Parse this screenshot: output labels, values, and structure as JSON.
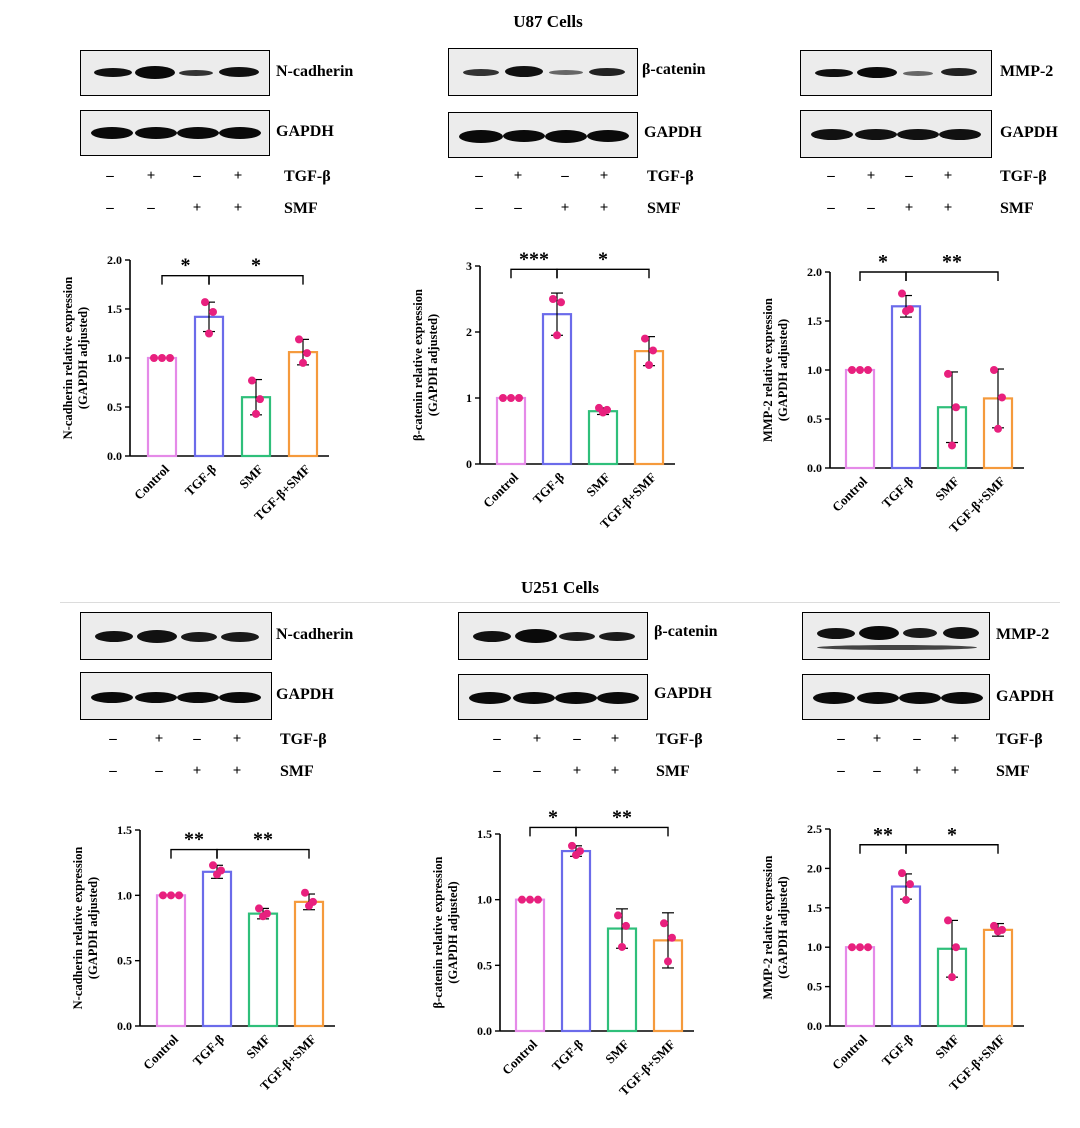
{
  "sections": [
    {
      "title": "U87 Cells"
    },
    {
      "title": "U251 Cells"
    }
  ],
  "treatment_rows": {
    "tgf_label": "TGF-β",
    "smf_label": "SMF",
    "tgf_signs": [
      "–",
      "+",
      "–",
      "+"
    ],
    "smf_signs": [
      "–",
      "–",
      "+",
      "+"
    ]
  },
  "blots": [
    {
      "protein": "N-cadherin",
      "loading": "GAPDH"
    },
    {
      "protein": "β-catenin",
      "loading": "GAPDH"
    },
    {
      "protein": "MMP-2",
      "loading": "GAPDH"
    },
    {
      "protein": "N-cadherin",
      "loading": "GAPDH"
    },
    {
      "protein": "β-catenin",
      "loading": "GAPDH"
    },
    {
      "protein": "MMP-2",
      "loading": "GAPDH"
    }
  ],
  "chart_data": [
    {
      "type": "bar",
      "ylabel": "N-cadherin relative expression (GAPDH adjusted)",
      "categories": [
        "Control",
        "TGF-β",
        "SMF",
        "TGF-β+SMF"
      ],
      "colors": [
        "#e58ae8",
        "#6b6bea",
        "#2fbf7a",
        "#f59a3c"
      ],
      "values": [
        1.0,
        1.42,
        0.6,
        1.06
      ],
      "errors": [
        0,
        0.15,
        0.18,
        0.13
      ],
      "points": [
        [
          1.0,
          1.0,
          1.0
        ],
        [
          1.57,
          1.47,
          1.25
        ],
        [
          0.77,
          0.58,
          0.43
        ],
        [
          1.19,
          1.05,
          0.95
        ]
      ],
      "ylim": [
        0,
        2.0
      ],
      "ticks": [
        0.0,
        0.5,
        1.0,
        1.5,
        2.0
      ],
      "tick_labels": [
        "0.0",
        "0.5",
        "1.0",
        "1.5",
        "2.0"
      ],
      "sig": [
        {
          "from": 0,
          "to": 1,
          "label": "*",
          "level": 1.84
        },
        {
          "from": 1,
          "to": 3,
          "label": "*",
          "level": 1.84
        }
      ]
    },
    {
      "type": "bar",
      "ylabel": "β-catenin relative expression (GAPDH adjusted)",
      "categories": [
        "Control",
        "TGF-β",
        "SMF",
        "TGF-β+SMF"
      ],
      "colors": [
        "#e58ae8",
        "#6b6bea",
        "#2fbf7a",
        "#f59a3c"
      ],
      "values": [
        1.0,
        2.27,
        0.8,
        1.71
      ],
      "errors": [
        0,
        0.32,
        0.05,
        0.22
      ],
      "points": [
        [
          1.0,
          1.0,
          1.0
        ],
        [
          2.5,
          2.45,
          1.95
        ],
        [
          0.85,
          0.82,
          0.78
        ],
        [
          1.9,
          1.72,
          1.5
        ]
      ],
      "ylim": [
        0,
        3
      ],
      "ticks": [
        0,
        1,
        2,
        3
      ],
      "tick_labels": [
        "0",
        "1",
        "2",
        "3"
      ],
      "sig": [
        {
          "from": 0,
          "to": 1,
          "label": "***",
          "level": 2.95
        },
        {
          "from": 1,
          "to": 3,
          "label": "*",
          "level": 2.95
        }
      ]
    },
    {
      "type": "bar",
      "ylabel": "MMP-2  relative expression (GAPDH adjusted)",
      "categories": [
        "Control",
        "TGF-β",
        "SMF",
        "TGF-β+SMF"
      ],
      "colors": [
        "#e58ae8",
        "#6b6bea",
        "#2fbf7a",
        "#f59a3c"
      ],
      "values": [
        1.0,
        1.65,
        0.62,
        0.71
      ],
      "errors": [
        0,
        0.11,
        0.36,
        0.3
      ],
      "points": [
        [
          1.0,
          1.0,
          1.0
        ],
        [
          1.78,
          1.62,
          1.6
        ],
        [
          0.96,
          0.62,
          0.23
        ],
        [
          1.0,
          0.72,
          0.4
        ]
      ],
      "ylim": [
        0,
        2.0
      ],
      "ticks": [
        0.0,
        0.5,
        1.0,
        1.5,
        2.0
      ],
      "tick_labels": [
        "0.0",
        "0.5",
        "1.0",
        "1.5",
        "2.0"
      ],
      "sig": [
        {
          "from": 0,
          "to": 1,
          "label": "*",
          "level": 2.0
        },
        {
          "from": 1,
          "to": 3,
          "label": "**",
          "level": 2.0
        }
      ]
    },
    {
      "type": "bar",
      "ylabel": "N-cadherin relative expression (GAPDH adjusted)",
      "categories": [
        "Control",
        "TGF-β",
        "SMF",
        "TGF-β+SMF"
      ],
      "colors": [
        "#e58ae8",
        "#6b6bea",
        "#2fbf7a",
        "#f59a3c"
      ],
      "values": [
        1.0,
        1.18,
        0.86,
        0.95
      ],
      "errors": [
        0,
        0.05,
        0.04,
        0.06
      ],
      "points": [
        [
          1.0,
          1.0,
          1.0
        ],
        [
          1.23,
          1.19,
          1.16
        ],
        [
          0.9,
          0.86,
          0.84
        ],
        [
          1.02,
          0.95,
          0.92
        ]
      ],
      "ylim": [
        0,
        1.5
      ],
      "ticks": [
        0.0,
        0.5,
        1.0,
        1.5
      ],
      "tick_labels": [
        "0.0",
        "0.5",
        "1.0",
        "1.5"
      ],
      "sig": [
        {
          "from": 0,
          "to": 1,
          "label": "**",
          "level": 1.35
        },
        {
          "from": 1,
          "to": 3,
          "label": "**",
          "level": 1.35
        }
      ]
    },
    {
      "type": "bar",
      "ylabel": "β-catenin relative expression (GAPDH adjusted)",
      "categories": [
        "Control",
        "TGF-β",
        "SMF",
        "TGF-β+SMF"
      ],
      "colors": [
        "#e58ae8",
        "#6b6bea",
        "#2fbf7a",
        "#f59a3c"
      ],
      "values": [
        1.0,
        1.37,
        0.78,
        0.69
      ],
      "errors": [
        0,
        0.04,
        0.15,
        0.21
      ],
      "points": [
        [
          1.0,
          1.0,
          1.0
        ],
        [
          1.41,
          1.37,
          1.34
        ],
        [
          0.88,
          0.8,
          0.64
        ],
        [
          0.82,
          0.71,
          0.53
        ]
      ],
      "ylim": [
        0,
        1.5
      ],
      "ticks": [
        0.0,
        0.5,
        1.0,
        1.5
      ],
      "tick_labels": [
        "0.0",
        "0.5",
        "1.0",
        "1.5"
      ],
      "sig": [
        {
          "from": 0,
          "to": 1,
          "label": "*",
          "level": 1.55
        },
        {
          "from": 1,
          "to": 3,
          "label": "**",
          "level": 1.55
        }
      ]
    },
    {
      "type": "bar",
      "ylabel": "MMP-2  relative expression (GAPDH adjusted)",
      "categories": [
        "Control",
        "TGF-β",
        "SMF",
        "TGF-β+SMF"
      ],
      "colors": [
        "#e58ae8",
        "#6b6bea",
        "#2fbf7a",
        "#f59a3c"
      ],
      "values": [
        1.0,
        1.77,
        0.98,
        1.22
      ],
      "errors": [
        0,
        0.16,
        0.36,
        0.08
      ],
      "points": [
        [
          1.0,
          1.0,
          1.0
        ],
        [
          1.94,
          1.8,
          1.6
        ],
        [
          1.34,
          1.0,
          0.62
        ],
        [
          1.27,
          1.22,
          1.2
        ]
      ],
      "ylim": [
        0,
        2.5
      ],
      "ticks": [
        0.0,
        0.5,
        1.0,
        1.5,
        2.0,
        2.5
      ],
      "tick_labels": [
        "0.0",
        "0.5",
        "1.0",
        "1.5",
        "2.0",
        "2.5"
      ],
      "sig": [
        {
          "from": 0,
          "to": 1,
          "label": "**",
          "level": 2.3
        },
        {
          "from": 1,
          "to": 3,
          "label": "*",
          "level": 2.3
        }
      ]
    }
  ]
}
